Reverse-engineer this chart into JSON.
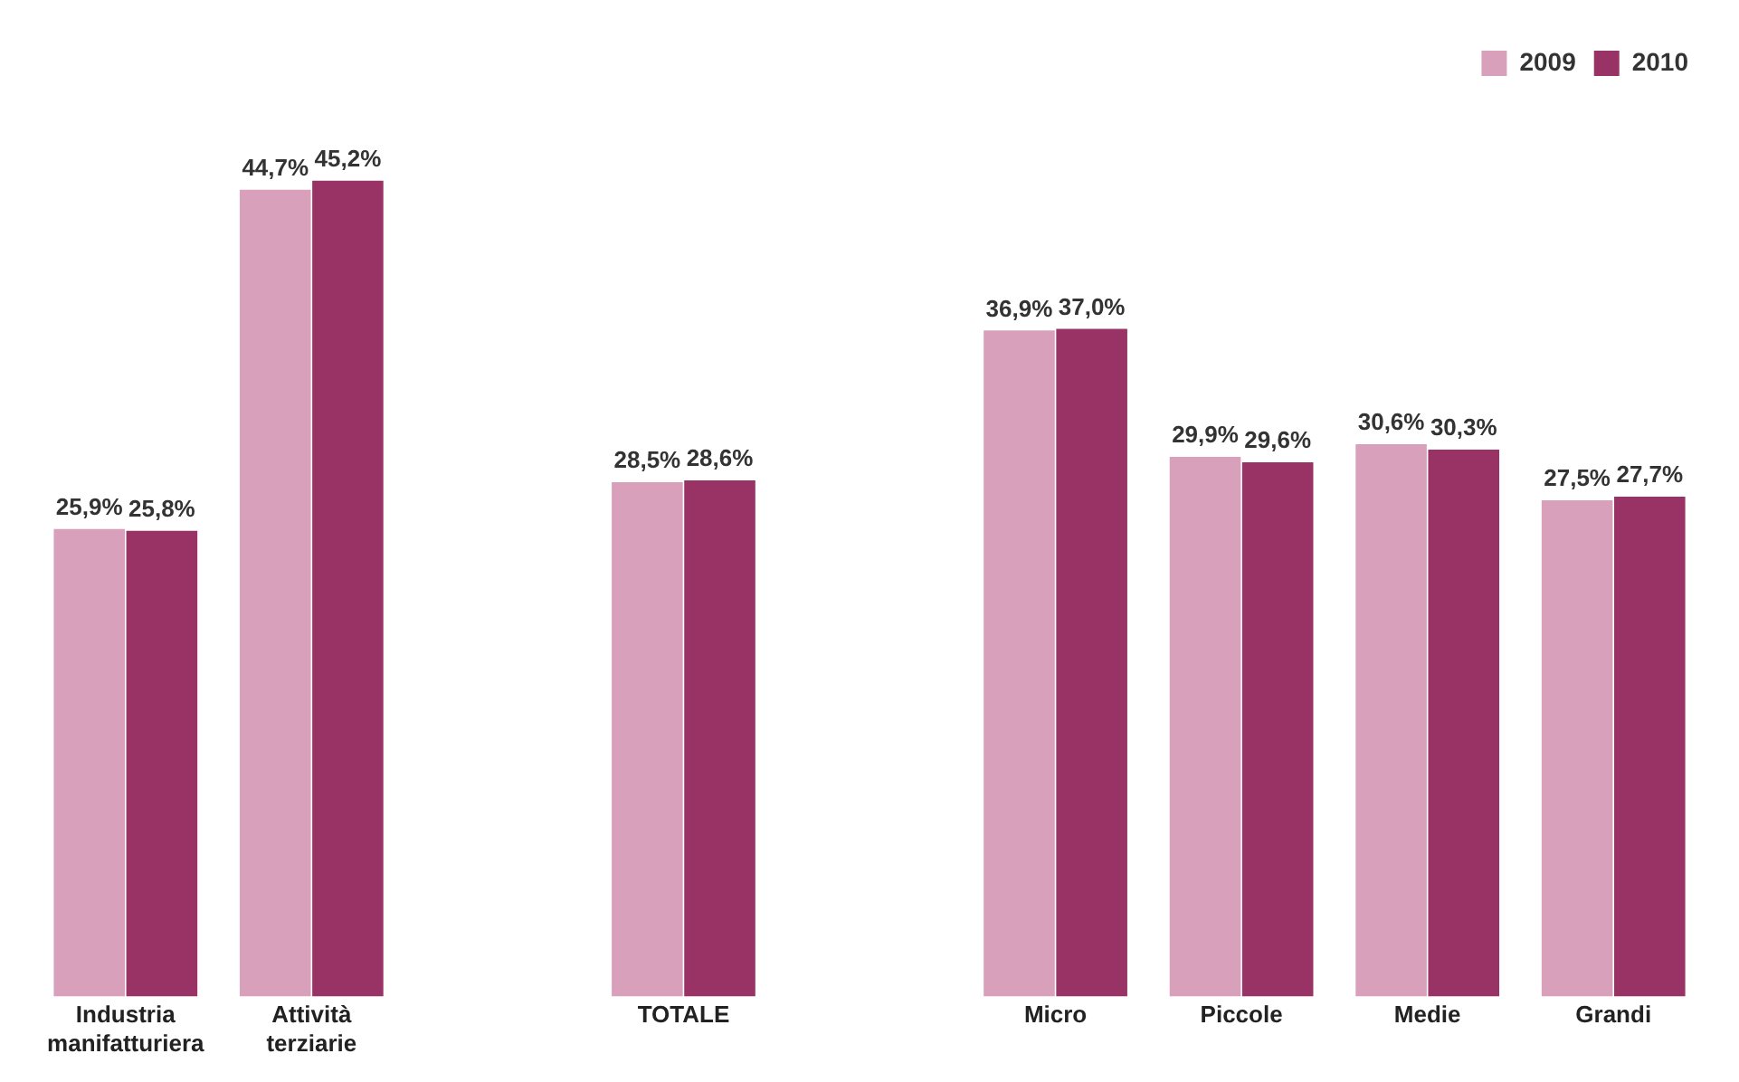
{
  "chart_data": {
    "type": "bar",
    "categories": [
      "Industria manifatturiera",
      "Attività terziarie",
      null,
      "TOTALE",
      null,
      "Micro",
      "Piccole",
      "Medie",
      "Grandi"
    ],
    "series": [
      {
        "name": "2009",
        "color": "#d9a0bc",
        "values": [
          25.9,
          44.7,
          null,
          28.5,
          null,
          36.9,
          29.9,
          30.6,
          27.5
        ],
        "value_labels": [
          "25,9%",
          "44,7%",
          null,
          "28,5%",
          null,
          "36,9%",
          "29,9%",
          "30,6%",
          "27,5%"
        ]
      },
      {
        "name": "2010",
        "color": "#993366",
        "values": [
          25.8,
          45.2,
          null,
          28.6,
          null,
          37.0,
          29.6,
          30.3,
          27.7
        ],
        "value_labels": [
          "25,8%",
          "45,2%",
          null,
          "28,6%",
          null,
          "37,0%",
          "29,6%",
          "30,3%",
          "27,7%"
        ]
      }
    ],
    "grid": false,
    "legend": "top right"
  }
}
